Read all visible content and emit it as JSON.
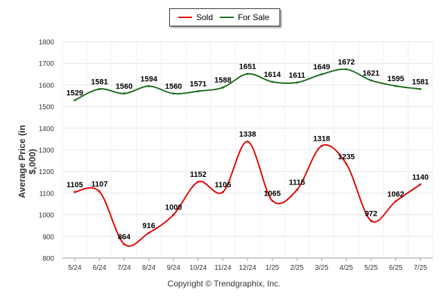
{
  "chart_data": {
    "type": "line",
    "categories": [
      "5/24",
      "6/24",
      "7/24",
      "8/24",
      "9/24",
      "10/24",
      "11/24",
      "12/24",
      "1/25",
      "2/25",
      "3/25",
      "4/25",
      "5/25",
      "6/25",
      "7/25"
    ],
    "series": [
      {
        "name": "Sold",
        "color": "#e00000",
        "values": [
          1105,
          1107,
          864,
          916,
          1000,
          1152,
          1105,
          1338,
          1065,
          1115,
          1318,
          1235,
          972,
          1062,
          1140
        ]
      },
      {
        "name": "For Sale",
        "color": "#1a6b1a",
        "values": [
          1529,
          1581,
          1560,
          1594,
          1560,
          1571,
          1588,
          1651,
          1614,
          1611,
          1649,
          1672,
          1621,
          1595,
          1581
        ]
      }
    ],
    "ylabel": "Average Price (in $,000)",
    "xlabel": "",
    "ylim": [
      800,
      1800
    ],
    "yticks": [
      800,
      900,
      1000,
      1100,
      1200,
      1300,
      1400,
      1500,
      1600,
      1700,
      1800
    ],
    "grid": true,
    "legend_position": "top-center"
  },
  "copyright": "Copyright © Trendgraphix, Inc."
}
